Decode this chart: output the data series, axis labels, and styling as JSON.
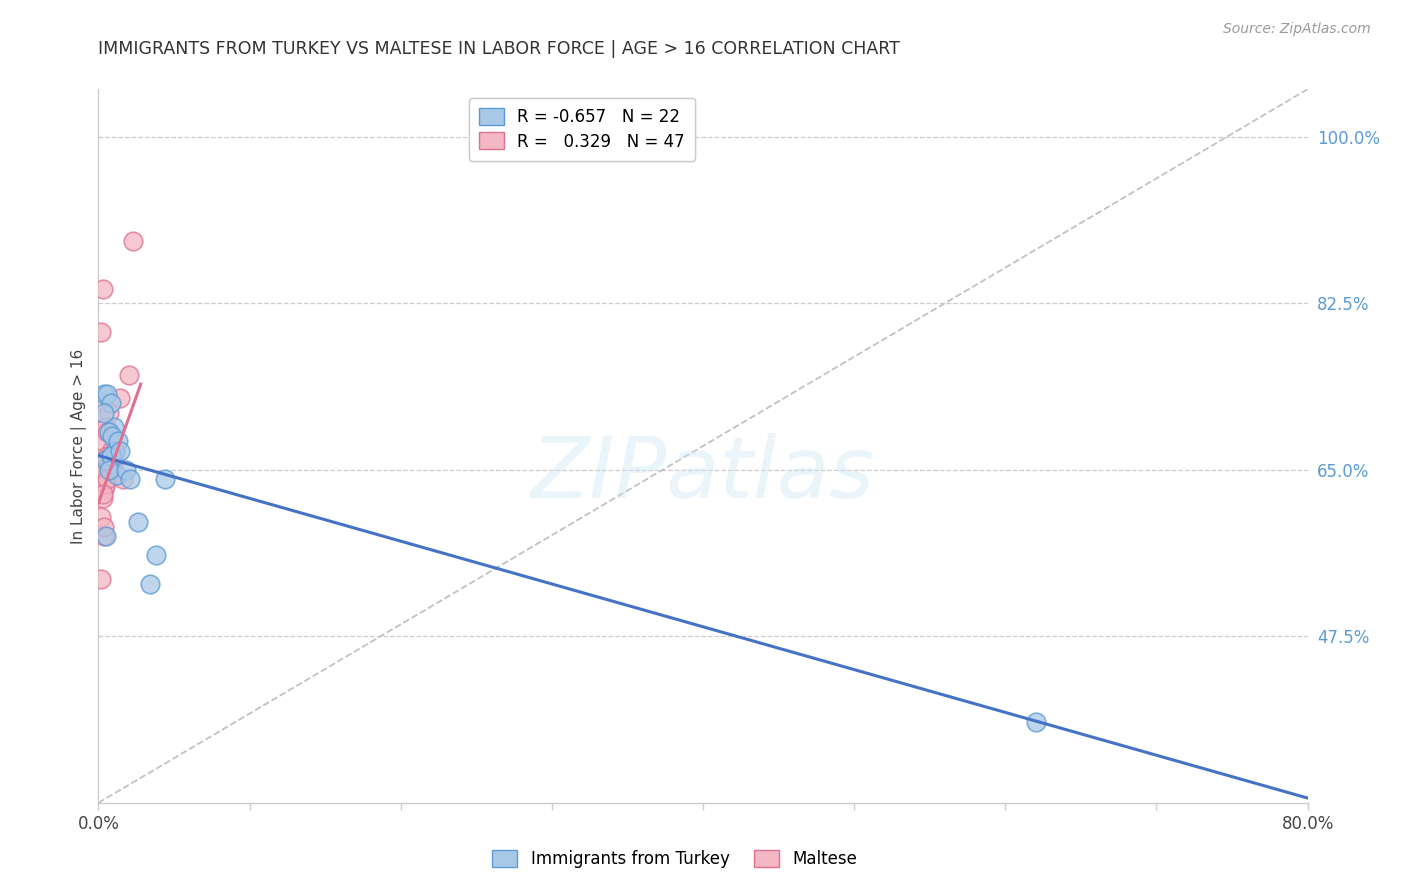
{
  "title": "IMMIGRANTS FROM TURKEY VS MALTESE IN LABOR FORCE | AGE > 16 CORRELATION CHART",
  "source": "Source: ZipAtlas.com",
  "ylabel": "In Labor Force | Age > 16",
  "xlim": [
    0.0,
    0.8
  ],
  "ylim": [
    0.3,
    1.05
  ],
  "xticks": [
    0.0,
    0.1,
    0.2,
    0.3,
    0.4,
    0.5,
    0.6,
    0.7,
    0.8
  ],
  "xticklabels": [
    "0.0%",
    "",
    "",
    "",
    "",
    "",
    "",
    "",
    "80.0%"
  ],
  "yticks_right": [
    0.475,
    0.65,
    0.825,
    1.0
  ],
  "yticklabels_right": [
    "47.5%",
    "65.0%",
    "82.5%",
    "100.0%"
  ],
  "grid_color": "#cccccc",
  "background_color": "#ffffff",
  "watermark": "ZIPatlas",
  "legend_R_blue": "-0.657",
  "legend_N_blue": "22",
  "legend_R_pink": "0.329",
  "legend_N_pink": "47",
  "blue_fill": "#a8c8e8",
  "blue_edge": "#5b9bd5",
  "pink_fill": "#f4b8c4",
  "pink_edge": "#e07090",
  "blue_line": "#4472c4",
  "pink_line": "#e07090",
  "ref_line_color": "#bbbbbb",
  "turkey_x": [
    0.004,
    0.006,
    0.008,
    0.01,
    0.004,
    0.007,
    0.009,
    0.005,
    0.011,
    0.008,
    0.013,
    0.014,
    0.012,
    0.007,
    0.005,
    0.018,
    0.021,
    0.026,
    0.038,
    0.034,
    0.62,
    0.044
  ],
  "turkey_y": [
    0.73,
    0.73,
    0.72,
    0.695,
    0.71,
    0.69,
    0.685,
    0.66,
    0.67,
    0.665,
    0.68,
    0.67,
    0.645,
    0.65,
    0.58,
    0.65,
    0.64,
    0.595,
    0.56,
    0.53,
    0.385,
    0.64
  ],
  "maltese_x": [
    0.002,
    0.004,
    0.007,
    0.003,
    0.005,
    0.009,
    0.003,
    0.006,
    0.008,
    0.011,
    0.002,
    0.004,
    0.007,
    0.005,
    0.003,
    0.002,
    0.006,
    0.009,
    0.004,
    0.014,
    0.007,
    0.005,
    0.003,
    0.003,
    0.008,
    0.01,
    0.004,
    0.006,
    0.007,
    0.003,
    0.005,
    0.009,
    0.003,
    0.006,
    0.004,
    0.008,
    0.011,
    0.005,
    0.007,
    0.002,
    0.004,
    0.006,
    0.009,
    0.003,
    0.02,
    0.016,
    0.023
  ],
  "maltese_y": [
    0.795,
    0.72,
    0.71,
    0.84,
    0.695,
    0.66,
    0.68,
    0.69,
    0.65,
    0.67,
    0.64,
    0.63,
    0.645,
    0.64,
    0.62,
    0.6,
    0.65,
    0.645,
    0.58,
    0.725,
    0.665,
    0.66,
    0.655,
    0.65,
    0.67,
    0.66,
    0.655,
    0.665,
    0.65,
    0.645,
    0.66,
    0.655,
    0.64,
    0.645,
    0.65,
    0.665,
    0.645,
    0.635,
    0.655,
    0.535,
    0.59,
    0.64,
    0.655,
    0.625,
    0.75,
    0.64,
    0.89
  ],
  "blue_trend_x": [
    0.0,
    0.8
  ],
  "blue_trend_y": [
    0.665,
    0.305
  ],
  "pink_trend_x": [
    0.0,
    0.028
  ],
  "pink_trend_y": [
    0.615,
    0.74
  ]
}
